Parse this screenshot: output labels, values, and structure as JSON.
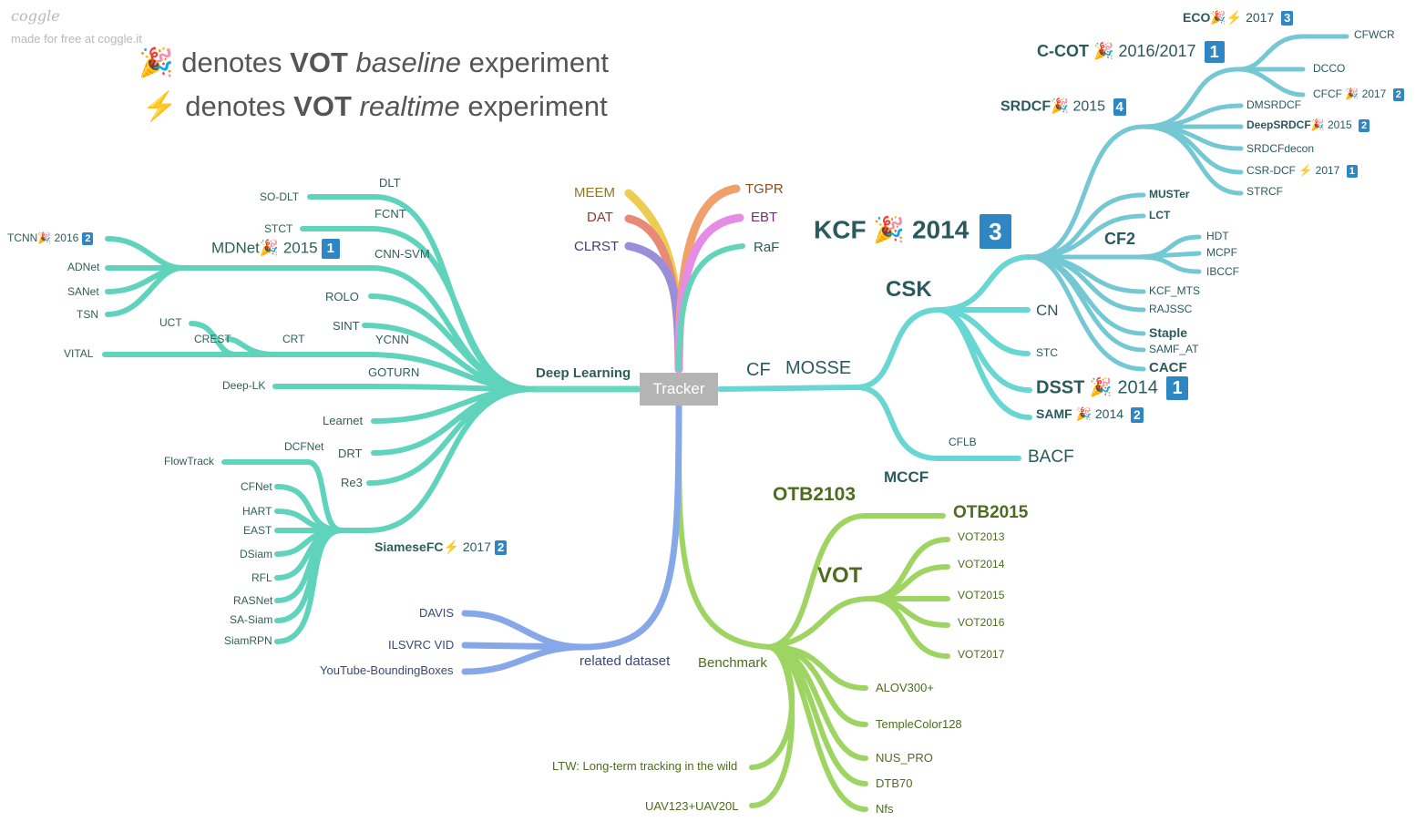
{
  "brand": {
    "name": "coggle",
    "tagline": "made for free at coggle.it"
  },
  "legend": [
    {
      "icon": "🎉",
      "pre": "denotes ",
      "strong": "VOT",
      "em": "baseline",
      "post": " experiment"
    },
    {
      "icon": "⚡",
      "pre": "denotes ",
      "strong": "VOT",
      "em": "realtime",
      "post": " experiment"
    }
  ],
  "root": "Tracker",
  "top": {
    "meem": "MEEM",
    "dat": "DAT",
    "clrst": "CLRST",
    "tgpr": "TGPR",
    "ebt": "EBT",
    "raf": "RaF"
  },
  "dl": {
    "branch": "Deep Learning",
    "so_dlt": "SO-DLT",
    "dlt": "DLT",
    "fcnt": "FCNT",
    "stct": "STCT",
    "cnn_svm": "CNN-SVM",
    "mdnet": "MDNet",
    "mdnet_year": "2015",
    "mdnet_rank": "1",
    "tcnn": "TCNN",
    "tcnn_year": "2016",
    "tcnn_rank": "2",
    "adnet": "ADNet",
    "sanet": "SANet",
    "tsn": "TSN",
    "rolo": "ROLO",
    "sint": "SINT",
    "ycnn": "YCNN",
    "uct": "UCT",
    "crest": "CREST",
    "crt": "CRT",
    "vital": "VITAL",
    "goturn": "GOTURN",
    "deep_lk": "Deep-LK",
    "learnet": "Learnet",
    "drt": "DRT",
    "re3": "Re3",
    "dcfnet": "DCFNet",
    "flowtrack": "FlowTrack",
    "cfnet": "CFNet",
    "hart": "HART",
    "east": "EAST",
    "siamesefc": "SiameseFC",
    "siamesefc_year": "2017",
    "siamesefc_rank": "2",
    "dsiam": "DSiam",
    "rfl": "RFL",
    "rasnet": "RASNet",
    "sa_siam": "SA-Siam",
    "siamrpn": "SiamRPN"
  },
  "cf": {
    "cf": "CF",
    "mosse": "MOSSE",
    "csk": "CSK",
    "kcf": "KCF",
    "kcf_year": "2014",
    "kcf_rank": "3",
    "cn": "CN",
    "stc": "STC",
    "dsst": "DSST",
    "dsst_year": "2014",
    "dsst_rank": "1",
    "samf": "SAMF",
    "samf_year": "2014",
    "samf_rank": "2",
    "mccf": "MCCF",
    "cflb": "CFLB",
    "bacf": "BACF",
    "muster": "MUSTer",
    "lct": "LCT",
    "cf2": "CF2",
    "hdt": "HDT",
    "mcpf": "MCPF",
    "ibccf": "IBCCF",
    "kcf_mts": "KCF_MTS",
    "rajssc": "RAJSSC",
    "staple": "Staple",
    "samf_at": "SAMF_AT",
    "cacf": "CACF",
    "srdcf": "SRDCF",
    "srdcf_year": "2015",
    "srdcf_rank": "4",
    "dmsrdcf": "DMSRDCF",
    "deepsrdcf": "DeepSRDCF",
    "deepsrdcf_year": "2015",
    "deepsrdcf_rank": "2",
    "srdcfdecon": "SRDCFdecon",
    "csr_dcf": "CSR-DCF",
    "csr_dcf_year": "2017",
    "csr_dcf_rank": "1",
    "strcf": "STRCF",
    "ccot": "C-COT",
    "ccot_year": "2016/2017",
    "ccot_rank": "1",
    "eco": "ECO",
    "eco_year": "2017",
    "eco_rank": "3",
    "cfwcr": "CFWCR",
    "dcco": "DCCO",
    "cfcf": "CFCF",
    "cfcf_year": "2017",
    "cfcf_rank": "2"
  },
  "bm": {
    "branch": "Benchmark",
    "otb2103": "OTB2103",
    "otb2015": "OTB2015",
    "vot": "VOT",
    "vot2013": "VOT2013",
    "vot2014": "VOT2014",
    "vot2015": "VOT2015",
    "vot2016": "VOT2016",
    "vot2017": "VOT2017",
    "alov": "ALOV300+",
    "tc128": "TempleColor128",
    "nus_pro": "NUS_PRO",
    "dtb70": "DTB70",
    "nfs": "Nfs",
    "ltw": "LTW: Long-term tracking in the wild",
    "uav": "UAV123+UAV20L"
  },
  "ds": {
    "branch": "related dataset",
    "davis": "DAVIS",
    "ilsvrc": "ILSVRC VID",
    "ytbb": "YouTube-BoundingBoxes"
  },
  "icons": {
    "party": "party-popper-icon",
    "bolt": "lightning-icon"
  }
}
